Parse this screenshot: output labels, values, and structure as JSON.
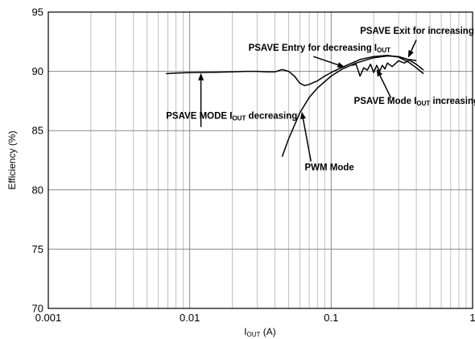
{
  "chart_data": {
    "type": "line",
    "xscale": "log",
    "xlim": [
      0.001,
      1
    ],
    "ylim": [
      70,
      95
    ],
    "grid": true,
    "xlabel": "I",
    "xlabel_sub": "OUT",
    "xlabel_unit": " (A)",
    "ylabel": "Efficiency (%)",
    "x_ticks": [
      0.001,
      0.01,
      0.1,
      1
    ],
    "x_tick_labels": [
      "0.001",
      "0.01",
      "0.1",
      "1"
    ],
    "y_ticks": [
      70,
      75,
      80,
      85,
      90,
      95
    ],
    "y_tick_labels": [
      "70",
      "75",
      "80",
      "85",
      "90",
      "95"
    ],
    "series": [
      {
        "id": "psave_decreasing",
        "x": [
          0.0068,
          0.008,
          0.01,
          0.015,
          0.02,
          0.025,
          0.03,
          0.035,
          0.04,
          0.045,
          0.05,
          0.055,
          0.06,
          0.065,
          0.07,
          0.08,
          0.09,
          0.1,
          0.12,
          0.14,
          0.16,
          0.2,
          0.25,
          0.3,
          0.35,
          0.4,
          0.45
        ],
        "y": [
          89.8,
          89.85,
          89.9,
          89.92,
          89.95,
          90.0,
          90.0,
          89.95,
          89.95,
          90.15,
          90.0,
          89.6,
          89.0,
          88.8,
          88.9,
          89.2,
          89.6,
          89.9,
          90.35,
          90.7,
          91.0,
          91.25,
          91.35,
          91.2,
          90.8,
          90.3,
          89.8
        ]
      },
      {
        "id": "pwm_mode",
        "x": [
          0.045,
          0.05,
          0.06,
          0.07,
          0.08,
          0.1,
          0.12,
          0.15,
          0.2,
          0.25,
          0.3,
          0.35,
          0.4,
          0.45
        ],
        "y": [
          82.8,
          84.3,
          86.5,
          87.8,
          88.6,
          89.6,
          90.2,
          90.7,
          91.15,
          91.3,
          91.25,
          91.0,
          90.6,
          90.1
        ]
      },
      {
        "id": "psave_increasing",
        "x": [
          0.14,
          0.15,
          0.16,
          0.17,
          0.18,
          0.19,
          0.2,
          0.21,
          0.22,
          0.23,
          0.24,
          0.25,
          0.27,
          0.3,
          0.33,
          0.36,
          0.4
        ],
        "y": [
          90.5,
          90.6,
          89.6,
          90.3,
          90.1,
          90.6,
          89.9,
          90.5,
          90.0,
          90.5,
          90.2,
          90.7,
          90.4,
          90.9,
          90.7,
          91.0,
          90.9
        ]
      }
    ],
    "annotations": [
      {
        "id": "psave-entry",
        "text": "PSAVE Entry for decreasing I",
        "sub": "OUT",
        "suffix": "",
        "anchor": "start",
        "text_x": 0.026,
        "text_y": 91.75,
        "head_x": 0.125,
        "head_y": 90.35,
        "tail_x": 0.075,
        "tail_y": 91.25
      },
      {
        "id": "psave-exit",
        "text": "PSAVE Exit for increasing I",
        "sub": "OUT",
        "suffix": "",
        "anchor": "start",
        "text_x": 0.16,
        "text_y": 93.15,
        "head_x": 0.35,
        "head_y": 91.15,
        "tail_x": 0.4,
        "tail_y": 92.65
      },
      {
        "id": "psave-mode-decreasing",
        "text": "PSAVE MODE I",
        "sub": "OUT",
        "suffix": " decreasing",
        "anchor": "start",
        "text_x": 0.0068,
        "text_y": 86.0,
        "head_x": 0.012,
        "head_y": 89.85,
        "tail_x": 0.012,
        "tail_y": 85.3
      },
      {
        "id": "psave-mode-increasing",
        "text": "PSAVE Mode I",
        "sub": "OUT",
        "suffix": " increasing",
        "anchor": "start",
        "text_x": 0.145,
        "text_y": 87.25,
        "head_x": 0.21,
        "head_y": 90.2,
        "tail_x": 0.265,
        "tail_y": 87.75
      },
      {
        "id": "pwm-mode",
        "text": "PWM Mode",
        "sub": "",
        "suffix": "",
        "anchor": "start",
        "text_x": 0.065,
        "text_y": 81.65,
        "head_x": 0.062,
        "head_y": 86.6,
        "tail_x": 0.072,
        "tail_y": 82.4
      }
    ]
  }
}
